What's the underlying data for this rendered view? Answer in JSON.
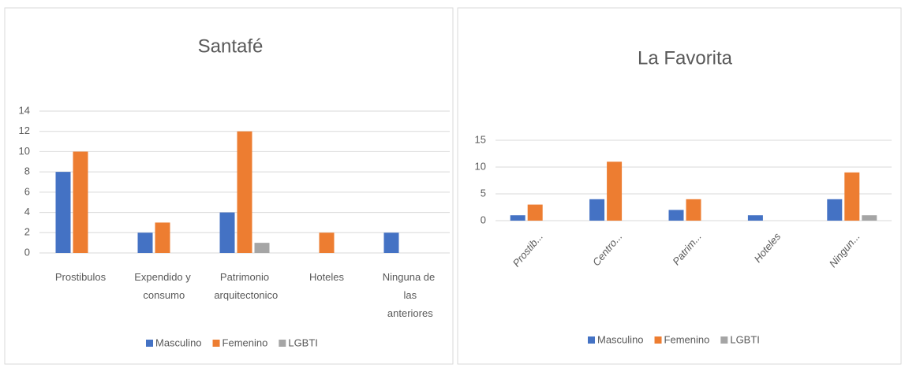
{
  "chart_data": [
    {
      "type": "bar",
      "title": "Santafé",
      "categories": [
        "Prostibulos",
        "Expendido y consumo",
        "Patrimonio arquitectonico",
        "Hoteles",
        "Ninguna de las anteriores"
      ],
      "series": [
        {
          "name": "Masculino",
          "color": "#4472c4",
          "values": [
            8,
            2,
            4,
            0,
            2
          ]
        },
        {
          "name": "Femenino",
          "color": "#ed7d31",
          "values": [
            10,
            3,
            12,
            2,
            0
          ]
        },
        {
          "name": "LGBTI",
          "color": "#a5a5a5",
          "values": [
            0,
            0,
            1,
            0,
            0
          ]
        }
      ],
      "ylim": [
        0,
        14
      ],
      "yticks": [
        0,
        2,
        4,
        6,
        8,
        10,
        12,
        14
      ],
      "grid": true,
      "legend": "bottom"
    },
    {
      "type": "bar",
      "title": "La Favorita",
      "categories": [
        "Prostib...",
        "Centro...",
        "Patrim...",
        "Hoteles",
        "Ningun..."
      ],
      "series": [
        {
          "name": "Masculino",
          "color": "#4472c4",
          "values": [
            1,
            4,
            2,
            1,
            4
          ]
        },
        {
          "name": "Femenino",
          "color": "#ed7d31",
          "values": [
            3,
            11,
            4,
            0,
            9
          ]
        },
        {
          "name": "LGBTI",
          "color": "#a5a5a5",
          "values": [
            0,
            0,
            0,
            0,
            1
          ]
        }
      ],
      "ylim": [
        0,
        15
      ],
      "yticks": [
        0,
        5,
        10,
        15
      ],
      "grid": true,
      "legend": "bottom"
    }
  ]
}
